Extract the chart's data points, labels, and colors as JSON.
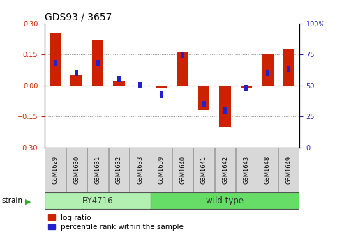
{
  "title": "GDS93 / 3657",
  "samples": [
    "GSM1629",
    "GSM1630",
    "GSM1631",
    "GSM1632",
    "GSM1633",
    "GSM1639",
    "GSM1640",
    "GSM1641",
    "GSM1642",
    "GSM1643",
    "GSM1648",
    "GSM1649"
  ],
  "log_ratio": [
    0.255,
    0.05,
    0.22,
    0.02,
    0.0,
    -0.012,
    0.16,
    -0.12,
    -0.205,
    -0.012,
    0.15,
    0.175
  ],
  "percentile": [
    68,
    60,
    68,
    55,
    50,
    43,
    75,
    35,
    30,
    48,
    60,
    63
  ],
  "groups": [
    {
      "label": "BY4716",
      "start": 0,
      "end": 5,
      "color": "#b2f0b2"
    },
    {
      "label": "wild type",
      "start": 5,
      "end": 12,
      "color": "#66dd66"
    }
  ],
  "bar_width": 0.55,
  "blue_marker_size": 5,
  "ylim_left": [
    -0.3,
    0.3
  ],
  "ylim_right": [
    0,
    100
  ],
  "yticks_left": [
    -0.3,
    -0.15,
    0.0,
    0.15,
    0.3
  ],
  "yticks_right": [
    0,
    25,
    50,
    75,
    100
  ],
  "bar_color_red": "#cc2200",
  "bar_color_blue": "#2222cc",
  "hline_color": "#cc0000",
  "dotted_color": "#888888",
  "title_fontsize": 10,
  "tick_fontsize": 7,
  "legend_fontsize": 7.5,
  "group_label_fontsize": 8.5,
  "strain_label": "strain",
  "bg_color": "white",
  "left_tick_color": "#cc2200",
  "right_tick_color": "#2222cc"
}
